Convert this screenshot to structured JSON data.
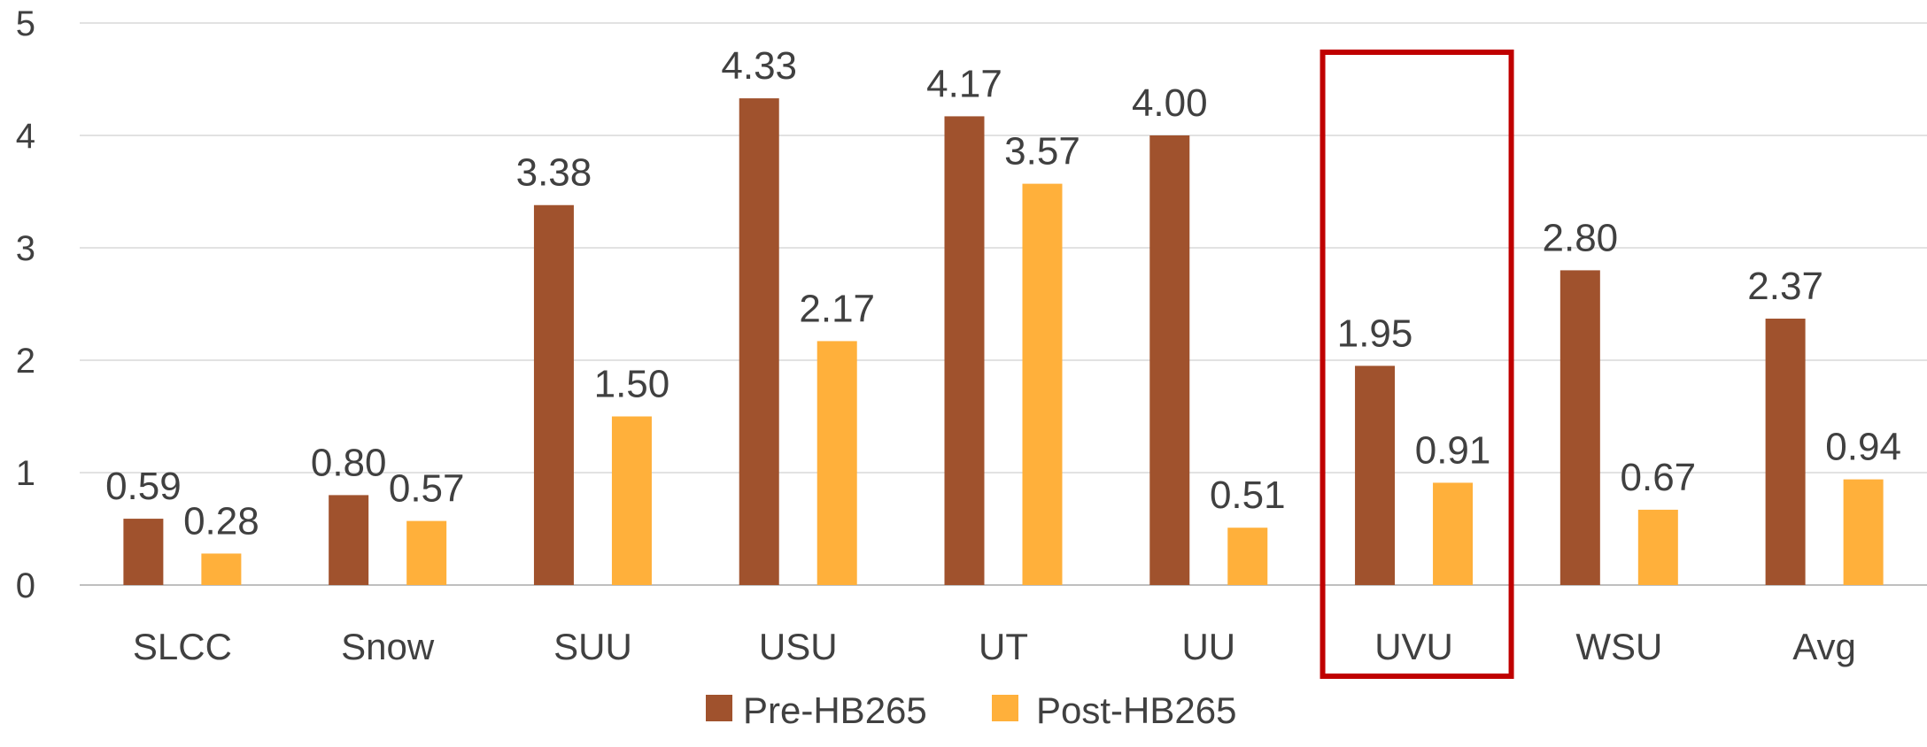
{
  "chart_data": {
    "type": "bar",
    "categories": [
      "SLCC",
      "Snow",
      "SUU",
      "USU",
      "UT",
      "UU",
      "UVU",
      "WSU",
      "Avg"
    ],
    "series": [
      {
        "name": "Pre-HB265",
        "color": "#A0522D",
        "values": [
          0.59,
          0.8,
          3.38,
          4.33,
          4.17,
          4.0,
          1.95,
          2.8,
          2.37
        ],
        "labels": [
          "0.59",
          "0.80",
          "3.38",
          "4.33",
          "4.17",
          "4.00",
          "1.95",
          "2.80",
          "2.37"
        ]
      },
      {
        "name": "Post-HB265",
        "color": "#FFB03B",
        "values": [
          0.28,
          0.57,
          1.5,
          2.17,
          3.57,
          0.51,
          0.91,
          0.67,
          0.94
        ],
        "labels": [
          "0.28",
          "0.57",
          "1.50",
          "2.17",
          "3.57",
          "0.51",
          "0.91",
          "0.67",
          "0.94"
        ]
      }
    ],
    "y_ticks": [
      "0",
      "1",
      "2",
      "3",
      "4",
      "5"
    ],
    "ylim": [
      0,
      5
    ],
    "grid": true,
    "legend_position": "bottom",
    "highlight": {
      "category": "UVU",
      "color": "#C00000"
    },
    "colors": {
      "grid": "#D9D9D9",
      "axis": "#BFBFBF",
      "text": "#404040",
      "data_label": "#404040"
    }
  }
}
